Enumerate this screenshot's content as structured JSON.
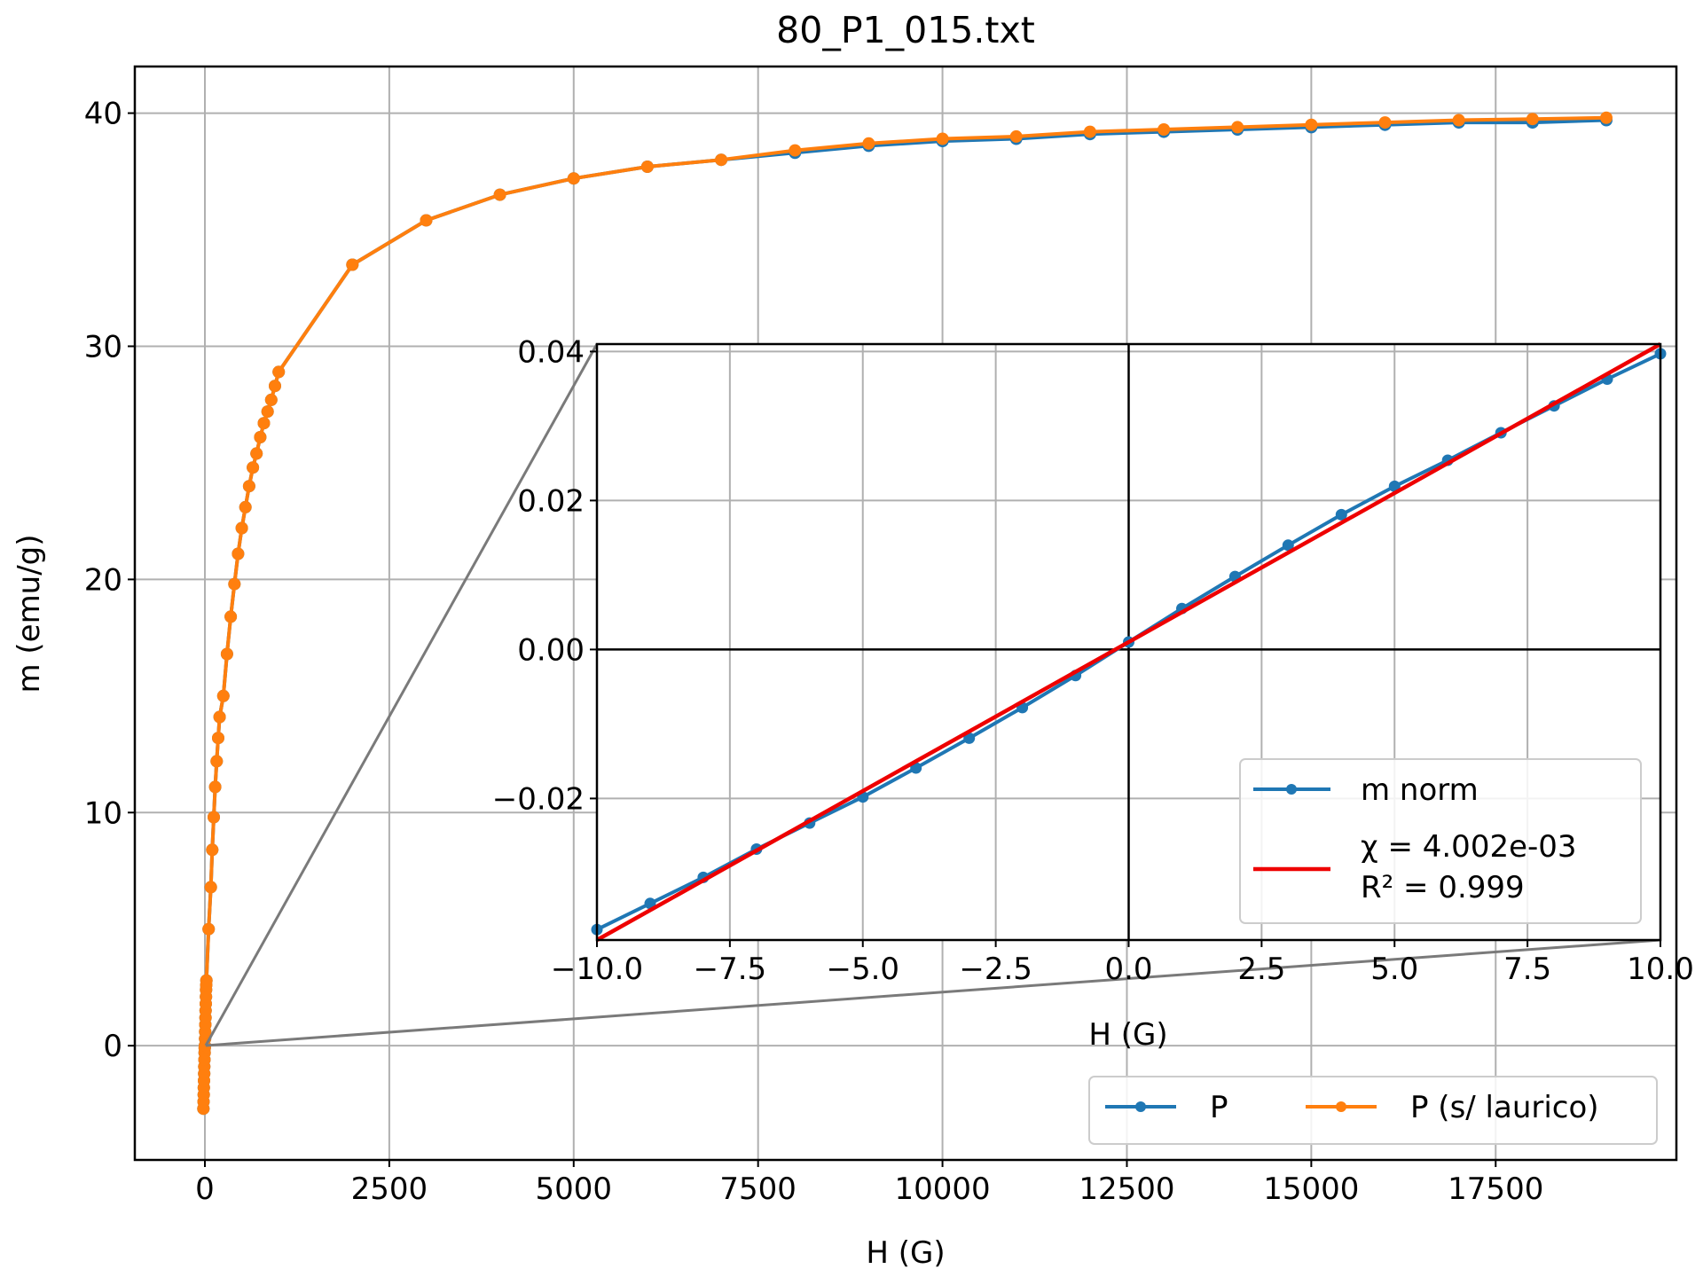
{
  "chart_data": [
    {
      "type": "line",
      "title": "80_P1_015.txt",
      "xlabel": "H (G)",
      "ylabel": "m (emu/g)",
      "xlim": [
        -950,
        19950
      ],
      "ylim": [
        -4.9,
        42.0
      ],
      "xticks": [
        0,
        2500,
        5000,
        7500,
        10000,
        12500,
        15000,
        17500
      ],
      "xtick_labels": [
        "0",
        "2500",
        "5000",
        "7500",
        "10000",
        "12500",
        "15000",
        "17500"
      ],
      "yticks": [
        0,
        10,
        20,
        30,
        40
      ],
      "ytick_labels": [
        "0",
        "10",
        "20",
        "30",
        "40"
      ],
      "grid": true,
      "legend_position": "lower-right",
      "series": [
        {
          "name": "P",
          "color": "#1f77b4",
          "x": [
            -20,
            -18,
            -16,
            -14,
            -12,
            -10,
            -8,
            -6,
            -4,
            -2,
            0,
            2,
            4,
            6,
            8,
            10,
            12,
            14,
            16,
            18,
            20,
            50,
            80,
            100,
            120,
            140,
            160,
            180,
            200,
            250,
            300,
            350,
            400,
            450,
            500,
            550,
            600,
            650,
            700,
            750,
            800,
            850,
            900,
            950,
            1000,
            2000,
            3000,
            4000,
            5000,
            6000,
            7000,
            8000,
            9000,
            10000,
            11000,
            12000,
            13000,
            14000,
            15000,
            16000,
            17000,
            18000,
            19000
          ],
          "y": [
            -2.7,
            -2.4,
            -2.1,
            -1.8,
            -1.5,
            -1.2,
            -0.9,
            -0.6,
            -0.3,
            -0.1,
            0.0,
            0.3,
            0.6,
            0.9,
            1.2,
            1.5,
            1.8,
            2.1,
            2.4,
            2.6,
            2.8,
            5.0,
            6.8,
            8.4,
            9.8,
            11.1,
            12.2,
            13.2,
            14.1,
            15.0,
            16.8,
            18.4,
            19.8,
            21.1,
            22.2,
            23.1,
            24.0,
            24.8,
            25.4,
            26.1,
            26.7,
            27.2,
            27.7,
            28.3,
            28.9,
            33.5,
            35.4,
            36.5,
            37.2,
            37.7,
            38.0,
            38.3,
            38.6,
            38.8,
            38.9,
            39.1,
            39.2,
            39.3,
            39.4,
            39.5,
            39.6,
            39.6,
            39.7
          ]
        },
        {
          "name": "P (s/ laurico)",
          "color": "#ff7f0e",
          "x": [
            -20,
            -18,
            -16,
            -14,
            -12,
            -10,
            -8,
            -6,
            -4,
            -2,
            0,
            2,
            4,
            6,
            8,
            10,
            12,
            14,
            16,
            18,
            20,
            50,
            80,
            100,
            120,
            140,
            160,
            180,
            200,
            250,
            300,
            350,
            400,
            450,
            500,
            550,
            600,
            650,
            700,
            750,
            800,
            850,
            900,
            950,
            1000,
            2000,
            3000,
            4000,
            5000,
            6000,
            7000,
            8000,
            9000,
            10000,
            11000,
            12000,
            13000,
            14000,
            15000,
            16000,
            17000,
            18000,
            19000
          ],
          "y": [
            -2.7,
            -2.4,
            -2.1,
            -1.8,
            -1.5,
            -1.2,
            -0.9,
            -0.6,
            -0.3,
            -0.1,
            0.0,
            0.3,
            0.6,
            0.9,
            1.2,
            1.5,
            1.8,
            2.1,
            2.4,
            2.6,
            2.8,
            5.0,
            6.8,
            8.4,
            9.8,
            11.1,
            12.2,
            13.2,
            14.1,
            15.0,
            16.8,
            18.4,
            19.8,
            21.1,
            22.2,
            23.1,
            24.0,
            24.8,
            25.4,
            26.1,
            26.7,
            27.2,
            27.7,
            28.3,
            28.9,
            33.5,
            35.4,
            36.5,
            37.2,
            37.7,
            38.0,
            38.4,
            38.7,
            38.9,
            39.0,
            39.2,
            39.3,
            39.4,
            39.5,
            39.6,
            39.7,
            39.75,
            39.8
          ]
        }
      ]
    },
    {
      "type": "line",
      "title": "",
      "xlabel": "H (G)",
      "ylabel": "",
      "xlim": [
        -10.0,
        10.0
      ],
      "ylim": [
        -0.039,
        0.041
      ],
      "xticks": [
        -10.0,
        -7.5,
        -5.0,
        -2.5,
        0.0,
        2.5,
        5.0,
        7.5,
        10.0
      ],
      "xtick_labels": [
        "−10.0",
        "−7.5",
        "−5.0",
        "−2.5",
        "0.0",
        "2.5",
        "5.0",
        "7.5",
        "10.0"
      ],
      "yticks": [
        -0.02,
        0.0,
        0.02,
        0.04
      ],
      "ytick_labels": [
        "−0.02",
        "0.00",
        "0.02",
        "0.04"
      ],
      "grid": true,
      "legend_position": "lower-right",
      "series": [
        {
          "name": "m norm",
          "color": "#1f77b4",
          "x": [
            -10,
            -9,
            -8,
            -7,
            -6,
            -5,
            -4,
            -3,
            -2,
            -1,
            0,
            1,
            2,
            3,
            4,
            5,
            6,
            7,
            8,
            9,
            10
          ],
          "y": [
            -0.0376,
            -0.0341,
            -0.0306,
            -0.0268,
            -0.0233,
            -0.0198,
            -0.0159,
            -0.0119,
            -0.0078,
            -0.0035,
            0.001,
            0.0055,
            0.0098,
            0.014,
            0.0181,
            0.0219,
            0.0254,
            0.0291,
            0.0327,
            0.0363,
            0.0397
          ]
        },
        {
          "name": "χ = 4.002e-03\nR² = 0.999",
          "legend_lines": [
            "χ = 4.002e-03",
            "R² = 0.999"
          ],
          "color": "#ee0000",
          "x": [
            -10,
            10
          ],
          "y": [
            -0.039,
            0.041
          ]
        }
      ]
    }
  ]
}
